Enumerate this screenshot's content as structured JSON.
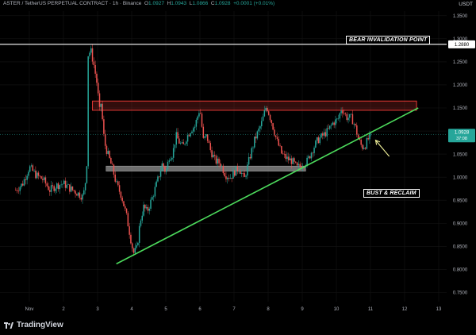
{
  "header": {
    "symbol": "ASTER / TetherUS PERPETUAL CONTRACT · 1h · Binance",
    "o_label": "O",
    "o": "1.0927",
    "h_label": "H",
    "h": "1.0943",
    "l_label": "L",
    "l": "1.0866",
    "c_label": "C",
    "c": "1.0928",
    "change": "+0.0001 (+0.01%)"
  },
  "currency": "USDT",
  "brand": "TradingView",
  "annotations": {
    "bear": "BEAR INVALIDATION POINT",
    "bust": "BUST & RECLAIM"
  },
  "price_tags": {
    "invalidation": "1.2880",
    "current": "1.0928",
    "countdown": "37:08"
  },
  "colors": {
    "up": "#26a69a",
    "down": "#ef5350",
    "trendline": "#4cda5c",
    "arrow": "#f2f29a",
    "resistance": "#e53935"
  },
  "chart_data": {
    "type": "candlestick",
    "ylim": [
      0.73,
      1.36
    ],
    "y_ticks": [
      "1.3500",
      "1.3000",
      "1.2500",
      "1.2000",
      "1.1500",
      "1.1000",
      "1.0500",
      "1.0000",
      "0.9500",
      "0.9000",
      "0.8500",
      "0.8000",
      "0.7500"
    ],
    "x_ticks": [
      {
        "label": "Nov",
        "t": 0
      },
      {
        "label": "2",
        "t": 1
      },
      {
        "label": "3",
        "t": 2
      },
      {
        "label": "4",
        "t": 3
      },
      {
        "label": "5",
        "t": 4
      },
      {
        "label": "6",
        "t": 5
      },
      {
        "label": "7",
        "t": 6
      },
      {
        "label": "8",
        "t": 7
      },
      {
        "label": "9",
        "t": 8
      },
      {
        "label": "10",
        "t": 9
      },
      {
        "label": "11",
        "t": 10
      },
      {
        "label": "12",
        "t": 11
      },
      {
        "label": "13",
        "t": 12
      }
    ],
    "horizontal_line": 1.288,
    "last_price": 1.0928,
    "resistance_zone": {
      "low": 1.145,
      "high": 1.165,
      "t_start": 1.85,
      "t_end": 11.35
    },
    "support_zone": {
      "low": 1.013,
      "high": 1.024,
      "t_start": 2.25,
      "t_end": 8.1
    },
    "trendline": {
      "t1": 2.55,
      "p1": 0.812,
      "t2": 11.4,
      "p2": 1.15
    },
    "arrow": {
      "t_from": 10.55,
      "p_from": 1.045,
      "t_to": 10.15,
      "p_to": 1.08
    },
    "price_path": [
      [
        -0.4,
        0.972
      ],
      [
        -0.2,
        0.985
      ],
      [
        0.0,
        1.022
      ],
      [
        0.2,
        1.004
      ],
      [
        0.4,
        0.995
      ],
      [
        0.6,
        0.972
      ],
      [
        0.8,
        0.982
      ],
      [
        1.0,
        0.986
      ],
      [
        1.2,
        0.975
      ],
      [
        1.4,
        0.966
      ],
      [
        1.58,
        0.957
      ],
      [
        1.68,
        1.01
      ],
      [
        1.72,
        1.265
      ],
      [
        1.8,
        1.275
      ],
      [
        1.9,
        1.24
      ],
      [
        2.0,
        1.195
      ],
      [
        2.05,
        1.14
      ],
      [
        2.1,
        1.16
      ],
      [
        2.2,
        1.075
      ],
      [
        2.3,
        1.05
      ],
      [
        2.45,
        1.015
      ],
      [
        2.55,
        0.985
      ],
      [
        2.7,
        0.96
      ],
      [
        2.85,
        0.915
      ],
      [
        2.95,
        0.875
      ],
      [
        3.05,
        0.835
      ],
      [
        3.15,
        0.845
      ],
      [
        3.25,
        0.905
      ],
      [
        3.35,
        0.935
      ],
      [
        3.45,
        0.925
      ],
      [
        3.6,
        0.955
      ],
      [
        3.75,
        0.99
      ],
      [
        3.9,
        1.03
      ],
      [
        4.0,
        1.01
      ],
      [
        4.1,
        1.045
      ],
      [
        4.2,
        1.05
      ],
      [
        4.3,
        1.09
      ],
      [
        4.4,
        1.075
      ],
      [
        4.5,
        1.065
      ],
      [
        4.6,
        1.085
      ],
      [
        4.75,
        1.105
      ],
      [
        4.85,
        1.11
      ],
      [
        5.0,
        1.15
      ],
      [
        5.1,
        1.08
      ],
      [
        5.2,
        1.09
      ],
      [
        5.3,
        1.06
      ],
      [
        5.45,
        1.035
      ],
      [
        5.6,
        1.03
      ],
      [
        5.75,
        1.005
      ],
      [
        5.9,
        1.0
      ],
      [
        6.05,
        1.015
      ],
      [
        6.15,
        1.02
      ],
      [
        6.3,
        0.995
      ],
      [
        6.45,
        1.04
      ],
      [
        6.6,
        1.08
      ],
      [
        6.8,
        1.115
      ],
      [
        6.95,
        1.155
      ],
      [
        7.1,
        1.12
      ],
      [
        7.25,
        1.08
      ],
      [
        7.4,
        1.05
      ],
      [
        7.55,
        1.04
      ],
      [
        7.7,
        1.035
      ],
      [
        7.85,
        1.02
      ],
      [
        8.0,
        1.028
      ],
      [
        8.15,
        1.035
      ],
      [
        8.3,
        1.06
      ],
      [
        8.45,
        1.08
      ],
      [
        8.6,
        1.09
      ],
      [
        8.75,
        1.1
      ],
      [
        8.9,
        1.118
      ],
      [
        9.05,
        1.125
      ],
      [
        9.15,
        1.15
      ],
      [
        9.3,
        1.13
      ],
      [
        9.45,
        1.128
      ],
      [
        9.55,
        1.11
      ],
      [
        9.65,
        1.082
      ],
      [
        9.75,
        1.065
      ],
      [
        9.85,
        1.07
      ],
      [
        9.95,
        1.085
      ],
      [
        10.05,
        1.0928
      ]
    ]
  }
}
